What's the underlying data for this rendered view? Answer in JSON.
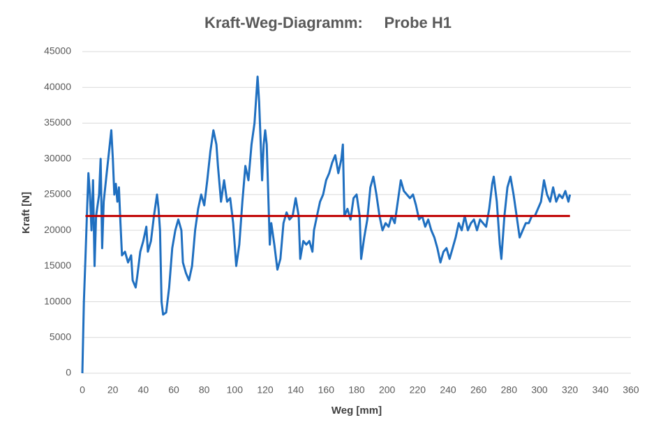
{
  "chart_data": {
    "type": "line",
    "title": "Kraft-Weg-Diagramm:     Probe H1",
    "x_label": "Weg [mm]",
    "y_label": "Kraft [N]",
    "xlim": [
      0,
      360
    ],
    "xticks": [
      0,
      20,
      40,
      60,
      80,
      100,
      120,
      140,
      160,
      180,
      200,
      220,
      240,
      260,
      280,
      300,
      320,
      340,
      360
    ],
    "ylim": [
      0,
      45000
    ],
    "yticks": [
      0,
      5000,
      10000,
      15000,
      20000,
      25000,
      30000,
      35000,
      40000,
      45000
    ],
    "grid": true,
    "series": [
      {
        "color": "#1f6fc0",
        "x": [
          0,
          1,
          2,
          3,
          4,
          5,
          6,
          7,
          8,
          9,
          11,
          12,
          13,
          14,
          16,
          18,
          19,
          20,
          21,
          22,
          23,
          24,
          25,
          26,
          28,
          30,
          32,
          33,
          35,
          36,
          38,
          40,
          42,
          43,
          45,
          47,
          49,
          50,
          51,
          52,
          53,
          55,
          57,
          59,
          61,
          63,
          65,
          66,
          68,
          70,
          72,
          74,
          76,
          78,
          80,
          82,
          84,
          86,
          88,
          89,
          91,
          93,
          95,
          97,
          99,
          101,
          103,
          105,
          107,
          109,
          111,
          113,
          115,
          116,
          118,
          119,
          120,
          121,
          123,
          124,
          126,
          128,
          130,
          132,
          134,
          136,
          138,
          140,
          142,
          143,
          145,
          147,
          149,
          151,
          152,
          154,
          156,
          158,
          160,
          162,
          164,
          166,
          168,
          170,
          171,
          172,
          174,
          176,
          178,
          180,
          182,
          183,
          185,
          187,
          189,
          191,
          193,
          195,
          197,
          199,
          201,
          203,
          205,
          207,
          209,
          211,
          213,
          215,
          217,
          219,
          221,
          223,
          225,
          227,
          229,
          231,
          233,
          235,
          237,
          239,
          241,
          243,
          245,
          247,
          249,
          251,
          253,
          255,
          257,
          259,
          261,
          263,
          265,
          267,
          269,
          270,
          272,
          274,
          275,
          277,
          279,
          281,
          283,
          285,
          287,
          289,
          291,
          293,
          295,
          297,
          299,
          301,
          303,
          305,
          307,
          309,
          311,
          313,
          315,
          317,
          319,
          320
        ],
        "values": [
          0,
          10000,
          16000,
          22000,
          28000,
          25000,
          20000,
          27000,
          15000,
          22000,
          25000,
          30000,
          17500,
          24000,
          28000,
          32000,
          34000,
          30000,
          25000,
          26500,
          24000,
          26000,
          21000,
          16500,
          17000,
          15500,
          16500,
          13000,
          12000,
          13500,
          17000,
          18500,
          20500,
          17000,
          18500,
          22000,
          25000,
          23000,
          20000,
          10000,
          8200,
          8500,
          12000,
          17500,
          20000,
          21500,
          20000,
          15500,
          14000,
          13000,
          15000,
          20000,
          23000,
          25000,
          23500,
          27000,
          31000,
          34000,
          32000,
          29000,
          24000,
          27000,
          24000,
          24500,
          21000,
          15000,
          18000,
          24000,
          29000,
          27000,
          32000,
          35000,
          41500,
          38000,
          27000,
          32000,
          34000,
          32000,
          18000,
          21000,
          18000,
          14500,
          16000,
          21000,
          22500,
          21500,
          22000,
          24500,
          22000,
          16000,
          18500,
          18000,
          18500,
          17000,
          20000,
          22000,
          24000,
          25000,
          27000,
          28000,
          29500,
          30500,
          28000,
          30000,
          32000,
          22000,
          23000,
          21500,
          24500,
          25000,
          22000,
          16000,
          19000,
          21500,
          26000,
          27500,
          25000,
          22000,
          20000,
          21000,
          20500,
          22000,
          21000,
          24000,
          27000,
          25500,
          25000,
          24500,
          25000,
          23500,
          21500,
          22000,
          20500,
          21500,
          20000,
          19000,
          17500,
          15500,
          17000,
          17500,
          16000,
          17500,
          19000,
          21000,
          20000,
          22000,
          20000,
          21000,
          21500,
          20000,
          21500,
          21000,
          20500,
          23000,
          26500,
          27500,
          24000,
          18000,
          16000,
          22000,
          26000,
          27500,
          25000,
          22000,
          19000,
          20000,
          21000,
          21000,
          22000,
          22000,
          23000,
          24000,
          27000,
          25000,
          24000,
          26000,
          24000,
          25000,
          24500,
          25500,
          24000,
          25000
        ]
      },
      {
        "color": "#c00000",
        "x": [
          2,
          320
        ],
        "values": [
          22000,
          22000
        ]
      }
    ]
  }
}
